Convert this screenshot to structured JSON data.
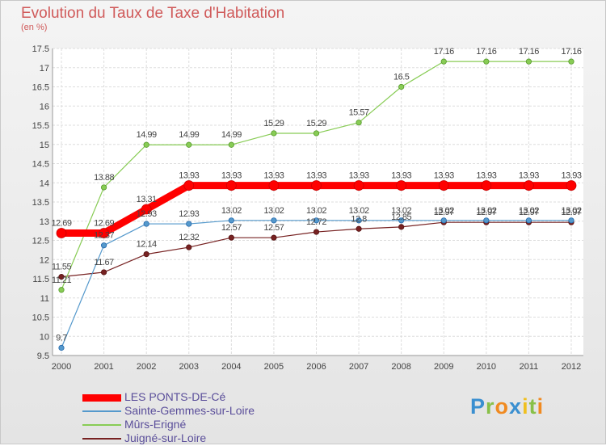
{
  "chart_data": {
    "type": "line",
    "title": "Evolution du Taux de Taxe d'Habitation",
    "subtitle": "(en %)",
    "xlabel": "",
    "ylabel": "",
    "categories": [
      "2000",
      "2001",
      "2002",
      "2003",
      "2004",
      "2005",
      "2006",
      "2007",
      "2008",
      "2009",
      "2010",
      "2011",
      "2012"
    ],
    "ylim": [
      9.5,
      17.5
    ],
    "yticks": [
      "9.5",
      "10",
      "10.5",
      "11",
      "11.5",
      "12",
      "12.5",
      "13",
      "13.5",
      "14",
      "14.5",
      "15",
      "15.5",
      "16",
      "16.5",
      "17",
      "17.5"
    ],
    "grid": true,
    "legend_position": "bottom-left",
    "series": [
      {
        "name": "LES PONTS-DE-Cé",
        "color": "#ff0000",
        "values": [
          12.69,
          12.69,
          13.31,
          13.93,
          13.93,
          13.93,
          13.93,
          13.93,
          13.93,
          13.93,
          13.93,
          13.93,
          13.93
        ],
        "labels": [
          "12.69",
          "12.69",
          "13.31",
          "13.93",
          "13.93",
          "13.93",
          "13.93",
          "13.93",
          "13.93",
          "13.93",
          "13.93",
          "13.93",
          "13.93"
        ]
      },
      {
        "name": "Sainte-Gemmes-sur-Loire",
        "color": "#5599cc",
        "values": [
          9.7,
          12.37,
          12.93,
          12.93,
          13.02,
          13.02,
          13.02,
          13.02,
          13.02,
          13.02,
          13.02,
          13.02,
          13.02
        ],
        "labels": [
          "9.7",
          "12.37",
          "12.93",
          "12.93",
          "13.02",
          "13.02",
          "13.02",
          "13.02",
          "13.02",
          "13.02",
          "13.02",
          "13.02",
          "13.02"
        ]
      },
      {
        "name": "Mûrs-Erigné",
        "color": "#88cc55",
        "values": [
          11.21,
          13.88,
          14.99,
          14.99,
          14.99,
          15.29,
          15.29,
          15.57,
          16.5,
          17.16,
          17.16,
          17.16,
          17.16
        ],
        "labels": [
          "11.21",
          "13.88",
          "14.99",
          "14.99",
          "14.99",
          "15.29",
          "15.29",
          "15.57",
          "16.5",
          "17.16",
          "17.16",
          "17.16",
          "17.16"
        ]
      },
      {
        "name": "Juigné-sur-Loire",
        "color": "#772222",
        "values": [
          11.55,
          11.67,
          12.14,
          12.32,
          12.57,
          12.57,
          12.72,
          12.8,
          12.85,
          12.97,
          12.97,
          12.97,
          12.97
        ],
        "labels": [
          "11.55",
          "11.67",
          "12.14",
          "12.32",
          "12.57",
          "12.57",
          "12.72",
          "12.8",
          "12.85",
          "12.97",
          "12.97",
          "12.97",
          "12.97"
        ]
      }
    ]
  },
  "logo": {
    "letters": [
      {
        "ch": "P",
        "color": "#3a8fd0"
      },
      {
        "ch": "r",
        "color": "#88c048"
      },
      {
        "ch": "o",
        "color": "#f08a20"
      },
      {
        "ch": "x",
        "color": "#3a8fd0"
      },
      {
        "ch": "i",
        "color": "#f0c020"
      },
      {
        "ch": "t",
        "color": "#88c048"
      },
      {
        "ch": "i",
        "color": "#f08a20"
      }
    ]
  }
}
